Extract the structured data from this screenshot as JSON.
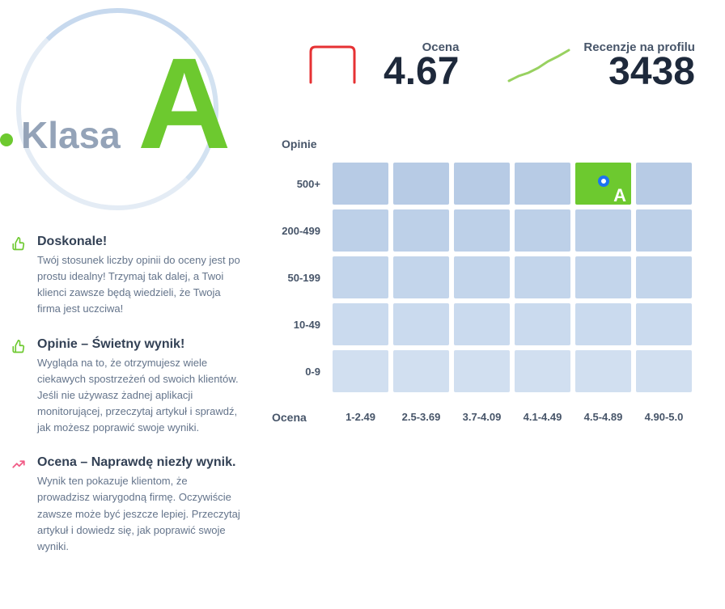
{
  "klasa": {
    "label": "Klasa",
    "grade": "A",
    "grade_color": "#6dc92f",
    "dot_color": "#6dc92f"
  },
  "stats": {
    "rating": {
      "label": "Ocena",
      "value": "4.67",
      "line_color": "#e63133"
    },
    "reviews": {
      "label": "Recenzje na profilu",
      "value": "3438",
      "line_color": "#98d160"
    }
  },
  "info_items": [
    {
      "icon": "thumbs-up",
      "icon_color": "#6dc92f",
      "title": "Doskonale!",
      "body": "Twój stosunek liczby opinii do oceny jest po prostu idealny! Trzymaj tak dalej, a Twoi klienci zawsze będą wiedzieli, że Twoja firma jest uczciwa!"
    },
    {
      "icon": "thumbs-up",
      "icon_color": "#6dc92f",
      "title": "Opinie – Świetny wynik!",
      "body": "Wygląda na to, że otrzymujesz wiele ciekawych spostrzeżeń od swoich klientów. Jeśli nie używasz żadnej aplikacji monitorującej, przeczytaj artykuł i sprawdź, jak możesz poprawić swoje wyniki."
    },
    {
      "icon": "trend-up",
      "icon_color": "#f15b86",
      "title": "Ocena – Naprawdę niezły wynik.",
      "body": "Wynik ten pokazuje klientom, że prowadzisz wiarygodną firmę. Oczywiście zawsze może być jeszcze lepiej. Przeczytaj artykuł i dowiedz się, jak poprawić swoje wyniki."
    }
  ],
  "grid": {
    "y_axis_title": "Opinie",
    "x_axis_title": "Ocena",
    "row_labels": [
      "500+",
      "200-499",
      "50-199",
      "10-49",
      "0-9"
    ],
    "col_labels": [
      "1-2.49",
      "2.5-3.69",
      "3.7-4.09",
      "4.1-4.49",
      "4.5-4.89",
      "4.90-5.0"
    ],
    "cell_colors": [
      [
        "#b7cbe5",
        "#b7cbe5",
        "#b7cbe5",
        "#b7cbe5",
        "#6dc92f",
        "#b7cbe5"
      ],
      [
        "#bdd0e8",
        "#bdd0e8",
        "#bdd0e8",
        "#bdd0e8",
        "#bdd0e8",
        "#bdd0e8"
      ],
      [
        "#c3d5eb",
        "#c3d5eb",
        "#c3d5eb",
        "#c3d5eb",
        "#c3d5eb",
        "#c3d5eb"
      ],
      [
        "#cadaee",
        "#cadaee",
        "#cadaee",
        "#cadaee",
        "#cadaee",
        "#cadaee"
      ],
      [
        "#d1dff0",
        "#d1dff0",
        "#d1dff0",
        "#d1dff0",
        "#d1dff0",
        "#d1dff0"
      ]
    ],
    "highlight": {
      "row": 0,
      "col": 4,
      "letter": "A",
      "dot_border": "#1d72f2",
      "dot_fill": "#ffffff"
    }
  }
}
